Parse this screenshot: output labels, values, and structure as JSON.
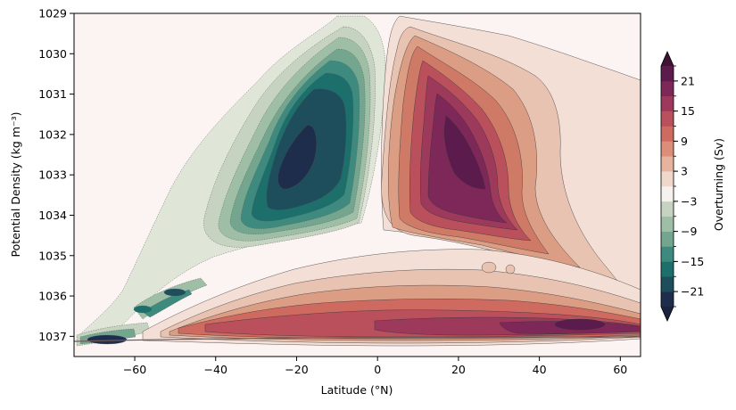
{
  "chart_data": {
    "type": "heatmap",
    "subtype": "filled-contour",
    "title": "",
    "xlabel": "Latitude (°N)",
    "ylabel": "Potential Density (kg m⁻³)",
    "xlim": [
      -75,
      65
    ],
    "ylim": [
      1037.5,
      1029
    ],
    "x_ticks": [
      -60,
      -40,
      -20,
      0,
      20,
      40,
      60
    ],
    "x_tick_labels": [
      "−60",
      "−40",
      "−20",
      "0",
      "20",
      "40",
      "60"
    ],
    "y_ticks": [
      1029,
      1030,
      1031,
      1032,
      1033,
      1034,
      1035,
      1036,
      1037
    ],
    "y_tick_labels": [
      "1029",
      "1030",
      "1031",
      "1032",
      "1033",
      "1034",
      "1035",
      "1036",
      "1037"
    ],
    "colorbar": {
      "label": "Overturning (Sv)",
      "levels": [
        -24,
        -21,
        -18,
        -15,
        -12,
        -9,
        -6,
        -3,
        0,
        3,
        6,
        9,
        12,
        15,
        18,
        21,
        24
      ],
      "colors": [
        "#1f2d4d",
        "#1e4e5c",
        "#1d6f6c",
        "#3f8a7f",
        "#73a58f",
        "#9fbea6",
        "#c6d3c1",
        "#f4f1ee",
        "#efd7cc",
        "#e7b39f",
        "#dc8e78",
        "#cf6a60",
        "#b9505b",
        "#9d3a5c",
        "#7e2859",
        "#5b1b4c"
      ],
      "extend": "both",
      "tick_values": [
        -21,
        -15,
        -9,
        -3,
        3,
        9,
        15,
        21
      ],
      "tick_labels": [
        "−21",
        "−15",
        "−9",
        "−3",
        "3",
        "9",
        "15",
        "21"
      ]
    },
    "features": [
      {
        "name": "southern-negative-cell",
        "sign": "negative",
        "lat": -18,
        "density": 1032.6,
        "peak": -24
      },
      {
        "name": "northern-positive-cell",
        "sign": "positive",
        "lat": 22,
        "density": 1032.9,
        "peak": 24
      },
      {
        "name": "deep-positive-band",
        "sign": "positive",
        "lat": 50,
        "density": 1036.7,
        "peak": 24
      },
      {
        "name": "dense-southern-cell",
        "sign": "negative",
        "lat": -65,
        "density": 1037.1,
        "peak": -24
      }
    ]
  }
}
